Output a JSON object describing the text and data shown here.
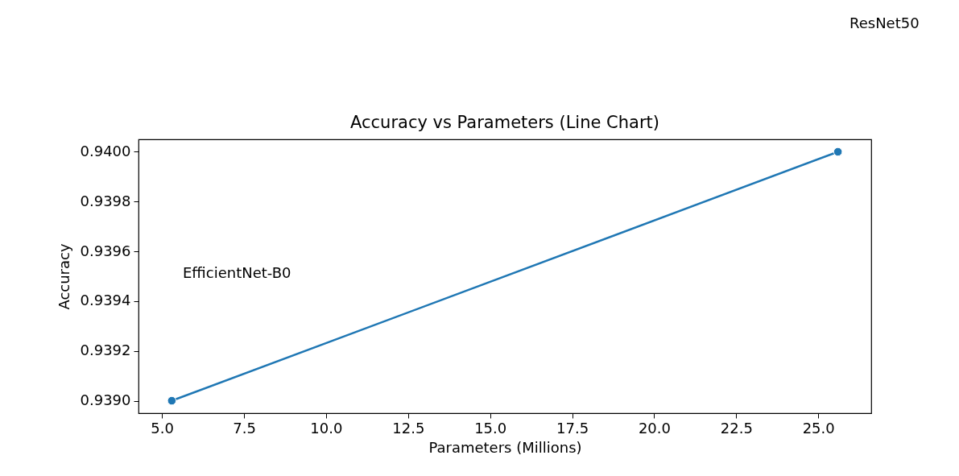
{
  "chart_data": {
    "type": "line",
    "title": "Accuracy vs Parameters (Line Chart)",
    "xlabel": "Parameters (Millions)",
    "ylabel": "Accuracy",
    "x": [
      5.3,
      25.6
    ],
    "series": [
      {
        "color": "#1f77b4",
        "values": [
          0.939,
          0.94
        ]
      }
    ],
    "annotations": [
      "EfficientNet-B0",
      "ResNet50"
    ],
    "xlim": [
      4.285,
      26.615
    ],
    "ylim": [
      0.93895,
      0.94005
    ],
    "xticks": [
      {
        "value": 5,
        "label": "5.0"
      },
      {
        "value": 7.5,
        "label": "7.5"
      },
      {
        "value": 10,
        "label": "10.0"
      },
      {
        "value": 12.5,
        "label": "12.5"
      },
      {
        "value": 15,
        "label": "15.0"
      },
      {
        "value": 17.5,
        "label": "17.5"
      },
      {
        "value": 20,
        "label": "20.0"
      },
      {
        "value": 22.5,
        "label": "22.5"
      },
      {
        "value": 25,
        "label": "25.0"
      }
    ],
    "yticks": [
      {
        "value": 0.939,
        "label": "0.9390"
      },
      {
        "value": 0.9392,
        "label": "0.9392"
      },
      {
        "value": 0.9394,
        "label": "0.9394"
      },
      {
        "value": 0.9396,
        "label": "0.9396"
      },
      {
        "value": 0.9398,
        "label": "0.9398"
      },
      {
        "value": 0.94,
        "label": "0.9400"
      }
    ],
    "grid": false,
    "marker": "circle",
    "line_style": "solid"
  }
}
